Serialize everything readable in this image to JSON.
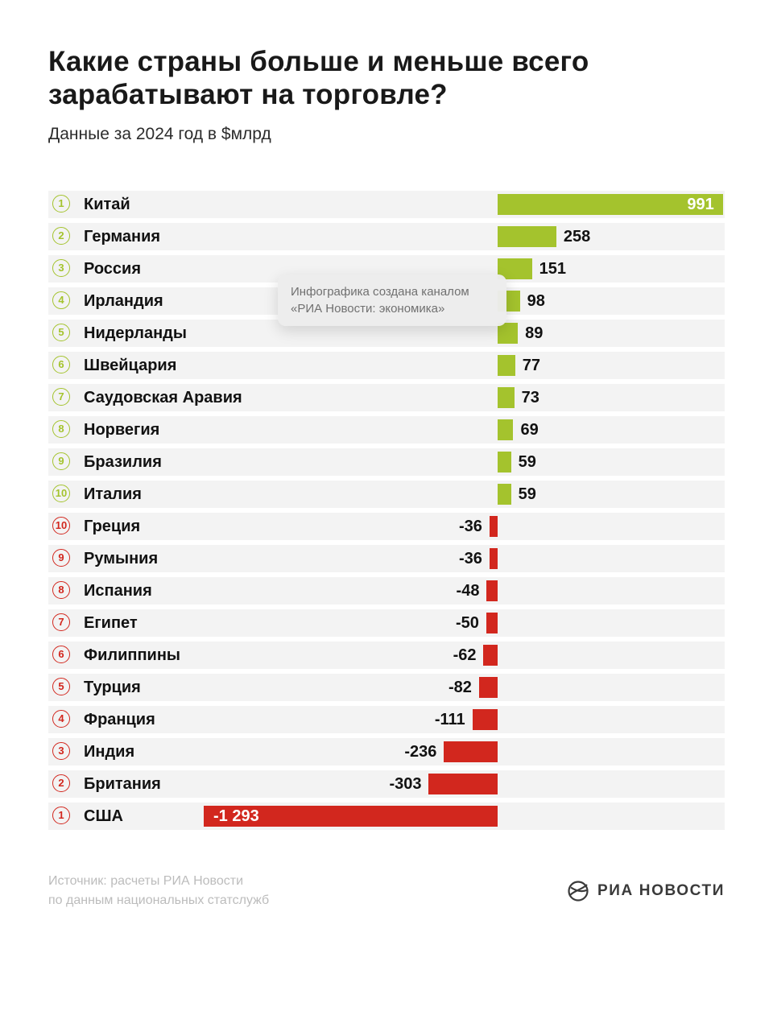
{
  "page": {
    "title_line1": "Какие страны больше и меньше всего",
    "title_line2": "зарабатывают на торговле?",
    "subtitle": "Данные за 2024 год в $млрд"
  },
  "tooltip": {
    "line1": "Инфографика создана каналом",
    "line2": "«РИА Новости: экономика»"
  },
  "footer": {
    "source_line1": "Источник: расчеты РИА Новости",
    "source_line2": "по данным национальных статслужб",
    "logo_text": "РИА НОВОСТИ"
  },
  "colors": {
    "positive": "#a4c32d",
    "negative": "#d2271e",
    "row_bg": "#f3f3f3"
  },
  "chart_data": {
    "type": "bar",
    "orientation": "horizontal",
    "title": "Какие страны больше и меньше всего зарабатывают на торговле?",
    "subtitle": "Данные за 2024 год в $млрд",
    "unit": "$млрд",
    "year": "2024",
    "zero_axis": true,
    "legend": "none",
    "rows": [
      {
        "rank": 1,
        "country": "Китай",
        "value": 991,
        "label": "991",
        "group": "positive",
        "label_inside": true
      },
      {
        "rank": 2,
        "country": "Германия",
        "value": 258,
        "label": "258",
        "group": "positive"
      },
      {
        "rank": 3,
        "country": "Россия",
        "value": 151,
        "label": "151",
        "group": "positive"
      },
      {
        "rank": 4,
        "country": "Ирландия",
        "value": 98,
        "label": "98",
        "group": "positive"
      },
      {
        "rank": 5,
        "country": "Нидерланды",
        "value": 89,
        "label": "89",
        "group": "positive"
      },
      {
        "rank": 6,
        "country": "Швейцария",
        "value": 77,
        "label": "77",
        "group": "positive"
      },
      {
        "rank": 7,
        "country": "Саудовская Аравия",
        "value": 73,
        "label": "73",
        "group": "positive"
      },
      {
        "rank": 8,
        "country": "Норвегия",
        "value": 69,
        "label": "69",
        "group": "positive"
      },
      {
        "rank": 9,
        "country": "Бразилия",
        "value": 59,
        "label": "59",
        "group": "positive"
      },
      {
        "rank": 10,
        "country": "Италия",
        "value": 59,
        "label": "59",
        "group": "positive"
      },
      {
        "rank": 10,
        "country": "Греция",
        "value": -36,
        "label": "-36",
        "group": "negative"
      },
      {
        "rank": 9,
        "country": "Румыния",
        "value": -36,
        "label": "-36",
        "group": "negative"
      },
      {
        "rank": 8,
        "country": "Испания",
        "value": -48,
        "label": "-48",
        "group": "negative"
      },
      {
        "rank": 7,
        "country": "Египет",
        "value": -50,
        "label": "-50",
        "group": "negative"
      },
      {
        "rank": 6,
        "country": "Филиппины",
        "value": -62,
        "label": "-62",
        "group": "negative"
      },
      {
        "rank": 5,
        "country": "Турция",
        "value": -82,
        "label": "-82",
        "group": "negative"
      },
      {
        "rank": 4,
        "country": "Франция",
        "value": -111,
        "label": "-111",
        "group": "negative"
      },
      {
        "rank": 3,
        "country": "Индия",
        "value": -236,
        "label": "-236",
        "group": "negative"
      },
      {
        "rank": 2,
        "country": "Британия",
        "value": -303,
        "label": "-303",
        "group": "negative"
      },
      {
        "rank": 1,
        "country": "США",
        "value": -1293,
        "label": "-1 293",
        "group": "negative",
        "label_inside": true
      }
    ]
  }
}
